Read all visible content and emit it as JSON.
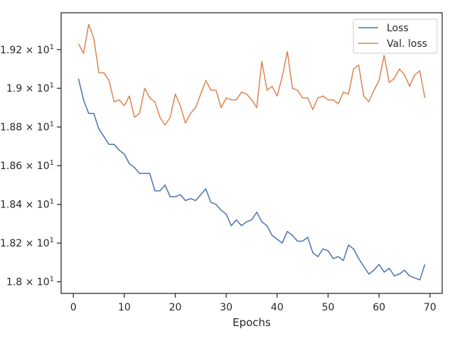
{
  "chart_data": {
    "type": "line",
    "title": "",
    "xlabel": "Epochs",
    "ylabel": "",
    "xlim": [
      -2.4,
      72.4
    ],
    "ylim": [
      17.94,
      19.39
    ],
    "x_ticks": [
      {
        "value": 0,
        "label": "0"
      },
      {
        "value": 10,
        "label": "10"
      },
      {
        "value": 20,
        "label": "20"
      },
      {
        "value": 30,
        "label": "30"
      },
      {
        "value": 40,
        "label": "40"
      },
      {
        "value": 50,
        "label": "50"
      },
      {
        "value": 60,
        "label": "60"
      },
      {
        "value": 70,
        "label": "70"
      }
    ],
    "y_ticks": [
      {
        "value": 18.0,
        "label": "1.8 × 10",
        "exp": "1"
      },
      {
        "value": 18.2,
        "label": "1.82 × 10",
        "exp": "1"
      },
      {
        "value": 18.4,
        "label": "1.84 × 10",
        "exp": "1"
      },
      {
        "value": 18.6,
        "label": "1.86 × 10",
        "exp": "1"
      },
      {
        "value": 18.8,
        "label": "1.88 × 10",
        "exp": "1"
      },
      {
        "value": 19.0,
        "label": "1.9 × 10",
        "exp": "1"
      },
      {
        "value": 19.2,
        "label": "1.92 × 10",
        "exp": "1"
      }
    ],
    "grid": false,
    "legend_position": "top-right",
    "x": [
      1,
      2,
      3,
      4,
      5,
      6,
      7,
      8,
      9,
      10,
      11,
      12,
      13,
      14,
      15,
      16,
      17,
      18,
      19,
      20,
      21,
      22,
      23,
      24,
      25,
      26,
      27,
      28,
      29,
      30,
      31,
      32,
      33,
      34,
      35,
      36,
      37,
      38,
      39,
      40,
      41,
      42,
      43,
      44,
      45,
      46,
      47,
      48,
      49,
      50,
      51,
      52,
      53,
      54,
      55,
      56,
      57,
      58,
      59,
      60,
      61,
      62,
      63,
      64,
      65,
      66,
      67,
      68,
      69
    ],
    "series": [
      {
        "name": "Loss",
        "color": "#4c72b0",
        "values": [
          19.05,
          18.94,
          18.87,
          18.87,
          18.79,
          18.75,
          18.71,
          18.71,
          18.68,
          18.66,
          18.61,
          18.59,
          18.56,
          18.56,
          18.56,
          18.47,
          18.47,
          18.5,
          18.44,
          18.44,
          18.45,
          18.42,
          18.43,
          18.42,
          18.45,
          18.48,
          18.41,
          18.4,
          18.37,
          18.35,
          18.29,
          18.32,
          18.29,
          18.31,
          18.32,
          18.36,
          18.31,
          18.29,
          18.24,
          18.22,
          18.2,
          18.26,
          18.24,
          18.21,
          18.21,
          18.23,
          18.15,
          18.13,
          18.17,
          18.16,
          18.12,
          18.13,
          18.11,
          18.19,
          18.17,
          18.12,
          18.08,
          18.04,
          18.06,
          18.09,
          18.05,
          18.07,
          18.03,
          18.04,
          18.06,
          18.03,
          18.02,
          18.01,
          18.09
        ]
      },
      {
        "name": "Val. loss",
        "color": "#dd8452",
        "values": [
          19.23,
          19.18,
          19.33,
          19.26,
          19.08,
          19.08,
          19.04,
          18.93,
          18.94,
          18.91,
          18.96,
          18.85,
          18.87,
          19.0,
          18.95,
          18.93,
          18.85,
          18.81,
          18.85,
          18.97,
          18.91,
          18.82,
          18.87,
          18.9,
          18.97,
          19.04,
          18.99,
          18.99,
          18.9,
          18.95,
          18.94,
          18.94,
          18.98,
          18.97,
          18.94,
          18.9,
          19.14,
          18.99,
          19.01,
          18.96,
          19.06,
          19.19,
          19.0,
          18.99,
          18.95,
          18.95,
          18.89,
          18.95,
          18.96,
          18.94,
          18.94,
          18.92,
          18.98,
          18.97,
          19.1,
          19.12,
          18.96,
          18.93,
          18.99,
          19.04,
          19.17,
          19.03,
          19.05,
          19.1,
          19.07,
          19.01,
          19.07,
          19.09,
          18.95
        ]
      }
    ]
  }
}
